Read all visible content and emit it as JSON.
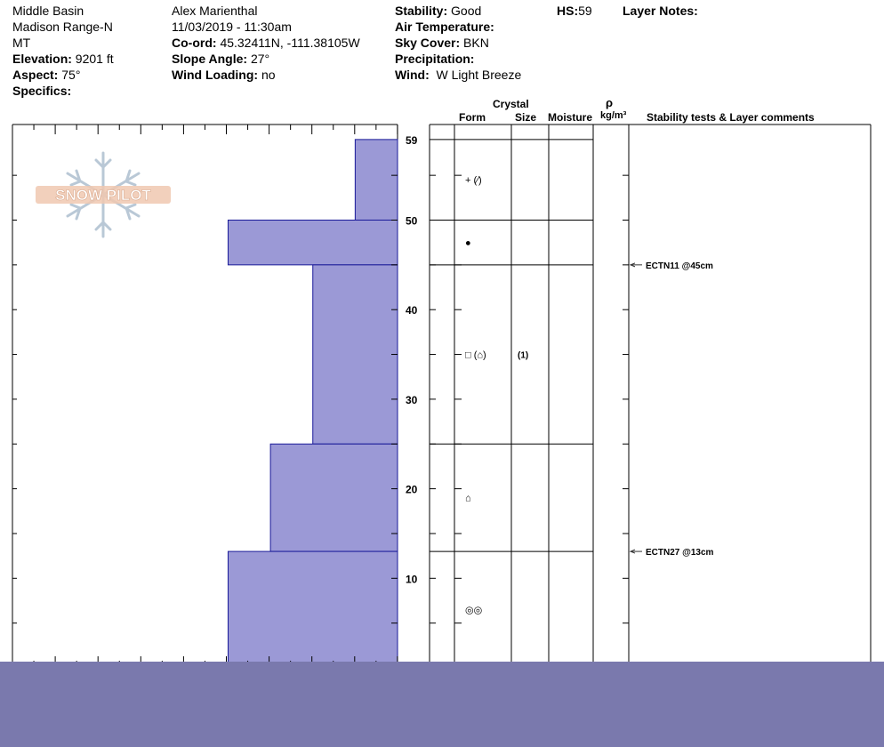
{
  "header": {
    "location": "Middle Basin",
    "range": "Madison Range-N",
    "state": "MT",
    "elevation_label": "Elevation:",
    "elevation": "9201 ft",
    "aspect_label": "Aspect:",
    "aspect": "75°",
    "specifics_label": "Specifics:",
    "observer": "Alex Marienthal",
    "datetime": "11/03/2019 - 11:30am",
    "coord_label": "Co-ord:",
    "coord": "45.32411N, -111.38105W",
    "slope_label": "Slope Angle:",
    "slope": "27°",
    "wind_loading_label": "Wind Loading:",
    "wind_loading": "no",
    "stability_label": "Stability:",
    "stability": "Good",
    "air_temp_label": "Air Temperature:",
    "sky_label": "Sky Cover:",
    "sky": "BKN",
    "precip_label": "Precipitation:",
    "wind_label": "Wind:",
    "wind": "W Light Breeze",
    "hs_label": "HS:",
    "hs": "59",
    "layer_notes_label": "Layer Notes:"
  },
  "columns": {
    "crystal": "Crystal",
    "form": "Form",
    "size": "Size",
    "moisture": "Moisture",
    "rho": "ρ",
    "density_unit": "kg/m³",
    "stability_comments": "Stability tests & Layer comments"
  },
  "logo_text": "SNOW PILOT",
  "height_ticks": [
    "59",
    "50",
    "40",
    "30",
    "20",
    "10"
  ],
  "layers": [
    {
      "top": 59,
      "bottom": 50,
      "hardness_fraction": 0.11,
      "form": "+ (⁄)",
      "size": ""
    },
    {
      "top": 50,
      "bottom": 45,
      "hardness_fraction": 0.44,
      "form": "●",
      "size": ""
    },
    {
      "top": 45,
      "bottom": 25,
      "hardness_fraction": 0.22,
      "form": "□ (⌂)",
      "size": "(1)"
    },
    {
      "top": 25,
      "bottom": 13,
      "hardness_fraction": 0.33,
      "form": "⌂",
      "size": ""
    },
    {
      "top": 13,
      "bottom": 0,
      "hardness_fraction": 0.44,
      "form": "◎◎",
      "size": ""
    }
  ],
  "stability_tests": [
    {
      "height": 45,
      "label": "ECTN11 @45cm"
    },
    {
      "height": 13,
      "label": "ECTN27 @13cm"
    }
  ],
  "colors": {
    "layer_fill": "#9b99d6",
    "layer_stroke": "#1a1a99",
    "bottom_bar": "#7a79ad"
  }
}
